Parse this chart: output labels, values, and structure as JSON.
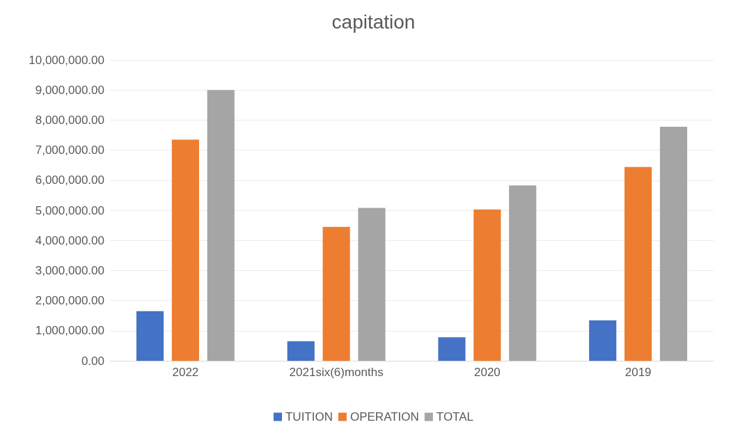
{
  "chart_data": {
    "type": "bar",
    "title": "capitation",
    "categories": [
      "2022",
      "2021six(6)months",
      "2020",
      "2019"
    ],
    "series": [
      {
        "name": "TUITION",
        "color": "#4472c4",
        "values": [
          1650000,
          650000,
          780000,
          1340000
        ]
      },
      {
        "name": "OPERATION",
        "color": "#ed7d31",
        "values": [
          7350000,
          4450000,
          5030000,
          6440000
        ]
      },
      {
        "name": "TOTAL",
        "color": "#a5a5a5",
        "values": [
          9000000,
          5080000,
          5830000,
          7780000
        ]
      }
    ],
    "ylim": [
      0,
      10000000
    ],
    "yticks": [
      {
        "value": 0,
        "label": "0.00"
      },
      {
        "value": 1000000,
        "label": "1,000,000.00"
      },
      {
        "value": 2000000,
        "label": "2,000,000.00"
      },
      {
        "value": 3000000,
        "label": "3,000,000.00"
      },
      {
        "value": 4000000,
        "label": "4,000,000.00"
      },
      {
        "value": 5000000,
        "label": "5,000,000.00"
      },
      {
        "value": 6000000,
        "label": "6,000,000.00"
      },
      {
        "value": 7000000,
        "label": "7,000,000.00"
      },
      {
        "value": 8000000,
        "label": "8,000,000.00"
      },
      {
        "value": 9000000,
        "label": "9,000,000.00"
      },
      {
        "value": 10000000,
        "label": "10,000,000.00"
      }
    ],
    "grid": "y",
    "legend": "bottom"
  }
}
